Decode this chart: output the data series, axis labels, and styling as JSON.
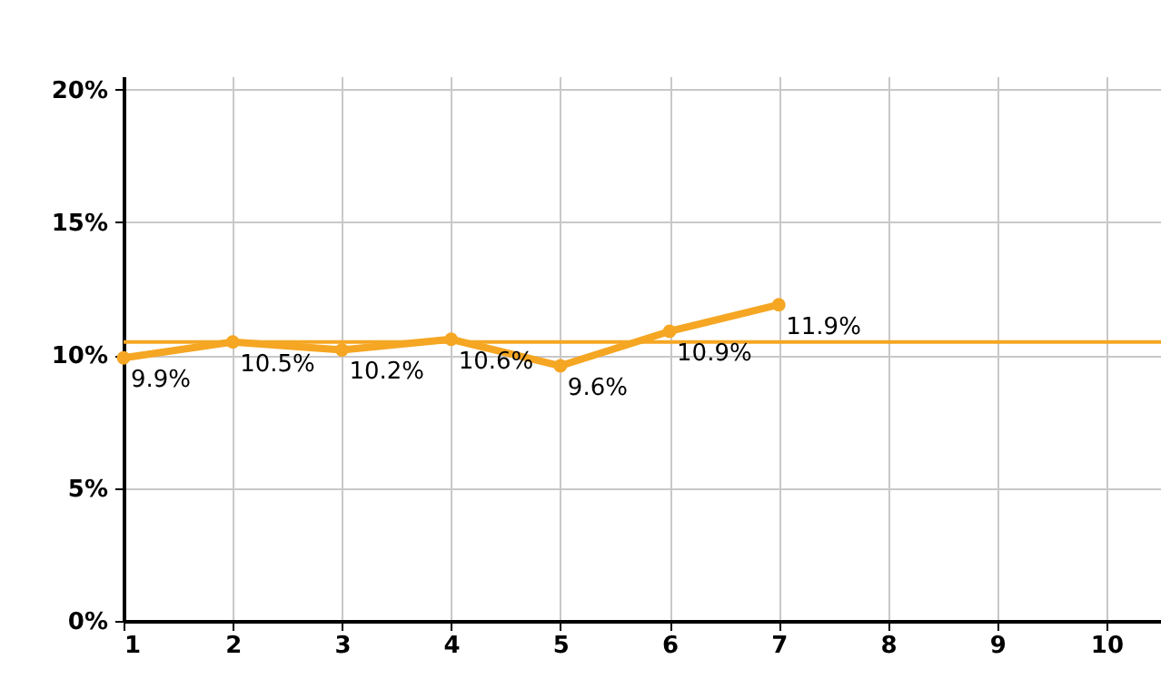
{
  "chart_data": {
    "type": "line",
    "x": [
      1,
      2,
      3,
      4,
      5,
      6,
      7
    ],
    "series": [
      {
        "color": "#f5a623",
        "values": [
          9.9,
          10.5,
          10.2,
          10.6,
          9.6,
          10.9,
          11.9
        ],
        "value_labels": [
          "9.9%",
          "10.5%",
          "10.2%",
          "10.6%",
          "9.6%",
          "10.9%",
          "11.9%"
        ]
      }
    ],
    "xlim": [
      1,
      10.5
    ],
    "xticks": [
      1,
      2,
      3,
      4,
      5,
      6,
      7,
      8,
      9,
      10
    ],
    "ylim": [
      0,
      20.5
    ],
    "yticks": [
      {
        "value": 0,
        "label": "0%"
      },
      {
        "value": 5,
        "label": "5%"
      },
      {
        "value": 10,
        "label": "10%"
      },
      {
        "value": 15,
        "label": "15%"
      },
      {
        "value": 20,
        "label": "20%"
      }
    ],
    "ref_lines": [
      {
        "axis": "y",
        "value": 10.5,
        "color": "#f5a623"
      }
    ],
    "grid": true,
    "marker": "circle",
    "line_style": "solid",
    "legend": false
  }
}
